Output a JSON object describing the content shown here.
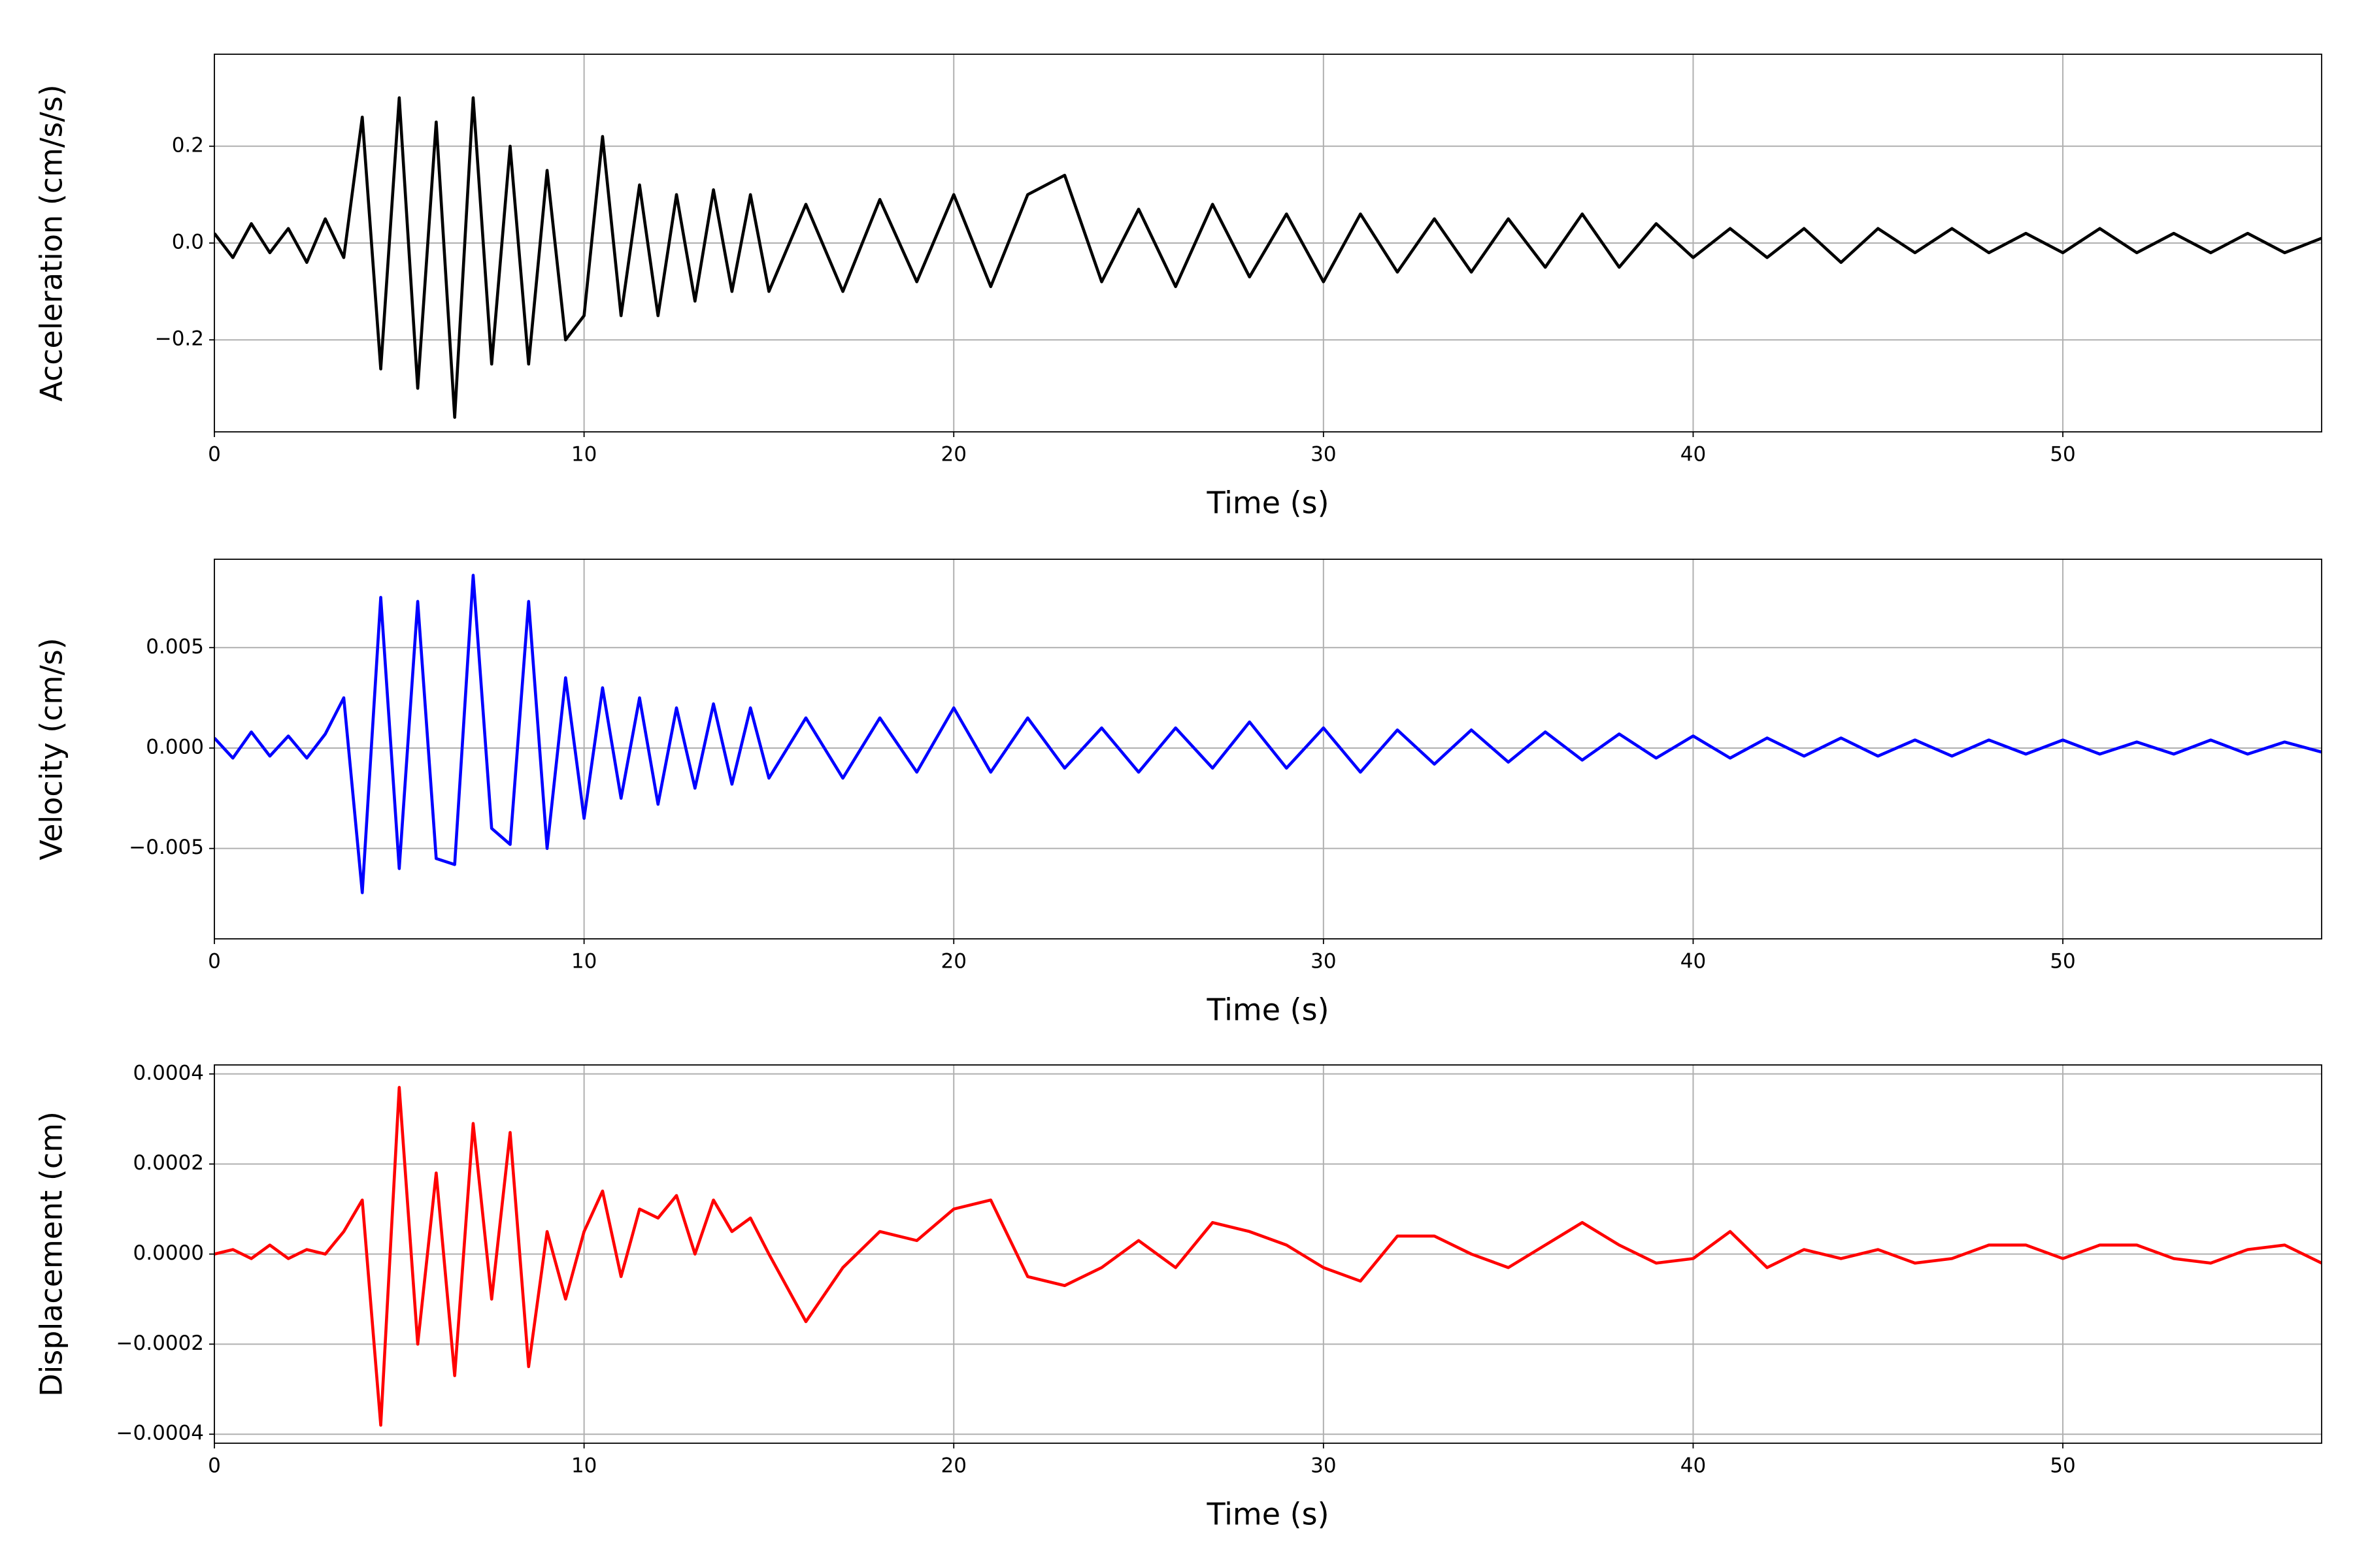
{
  "chart_data": [
    {
      "type": "line",
      "xlabel": "Time (s)",
      "ylabel": "Acceleration (cm/s/s)",
      "color": "#000000",
      "grid": true,
      "xlim": [
        0,
        57
      ],
      "xticks": [
        0,
        10,
        20,
        30,
        40,
        50
      ],
      "ylim": [
        -0.39,
        0.39
      ],
      "yticks": [
        {
          "value": -0.2,
          "label": "−0.2"
        },
        {
          "value": 0,
          "label": "0.0"
        },
        0.2
      ],
      "x": [
        0,
        0.5,
        1,
        1.5,
        2,
        2.5,
        3,
        3.5,
        4,
        4.5,
        5,
        5.5,
        6,
        6.5,
        7,
        7.5,
        8,
        8.5,
        9,
        9.5,
        10,
        10.5,
        11,
        11.5,
        12,
        12.5,
        13,
        13.5,
        14,
        14.5,
        15,
        16,
        17,
        18,
        19,
        20,
        21,
        22,
        23,
        24,
        25,
        26,
        27,
        28,
        29,
        30,
        31,
        32,
        33,
        34,
        35,
        36,
        37,
        38,
        39,
        40,
        41,
        42,
        43,
        44,
        45,
        46,
        47,
        48,
        49,
        50,
        51,
        52,
        53,
        54,
        55,
        56,
        57
      ],
      "values": [
        0.02,
        -0.03,
        0.04,
        -0.02,
        0.03,
        -0.04,
        0.05,
        -0.03,
        0.26,
        -0.26,
        0.3,
        -0.3,
        0.25,
        -0.36,
        0.3,
        -0.25,
        0.2,
        -0.25,
        0.15,
        -0.2,
        -0.15,
        0.22,
        -0.15,
        0.12,
        -0.15,
        0.1,
        -0.12,
        0.11,
        -0.1,
        0.1,
        -0.1,
        0.08,
        -0.1,
        0.09,
        -0.08,
        0.1,
        -0.09,
        0.1,
        0.14,
        -0.08,
        0.07,
        -0.09,
        0.08,
        -0.07,
        0.06,
        -0.08,
        0.06,
        -0.06,
        0.05,
        -0.06,
        0.05,
        -0.05,
        0.06,
        -0.05,
        0.04,
        -0.03,
        0.03,
        -0.03,
        0.03,
        -0.04,
        0.03,
        -0.02,
        0.03,
        -0.02,
        0.02,
        -0.02,
        0.03,
        -0.02,
        0.02,
        -0.02,
        0.02,
        -0.02,
        0.01
      ]
    },
    {
      "type": "line",
      "xlabel": "Time (s)",
      "ylabel": "Velocity (cm/s)",
      "color": "#0000ff",
      "grid": true,
      "xlim": [
        0,
        57
      ],
      "xticks": [
        0,
        10,
        20,
        30,
        40,
        50
      ],
      "ylim": [
        -0.0095,
        0.0094
      ],
      "yticks": [
        {
          "value": -0.005,
          "label": "−0.005"
        },
        {
          "value": 0,
          "label": "0.000"
        },
        0.005
      ],
      "x": [
        0,
        0.5,
        1,
        1.5,
        2,
        2.5,
        3,
        3.5,
        4,
        4.5,
        5,
        5.5,
        6,
        6.5,
        7,
        7.5,
        8,
        8.5,
        9,
        9.5,
        10,
        10.5,
        11,
        11.5,
        12,
        12.5,
        13,
        13.5,
        14,
        14.5,
        15,
        16,
        17,
        18,
        19,
        20,
        21,
        22,
        23,
        24,
        25,
        26,
        27,
        28,
        29,
        30,
        31,
        32,
        33,
        34,
        35,
        36,
        37,
        38,
        39,
        40,
        41,
        42,
        43,
        44,
        45,
        46,
        47,
        48,
        49,
        50,
        51,
        52,
        53,
        54,
        55,
        56,
        57
      ],
      "values": [
        0.0005,
        -0.0005,
        0.0008,
        -0.0004,
        0.0006,
        -0.0005,
        0.0007,
        0.0025,
        -0.0072,
        0.0075,
        -0.006,
        0.0073,
        -0.0055,
        -0.0058,
        0.0086,
        -0.004,
        -0.0048,
        0.0073,
        -0.005,
        0.0035,
        -0.0035,
        0.003,
        -0.0025,
        0.0025,
        -0.0028,
        0.002,
        -0.002,
        0.0022,
        -0.0018,
        0.002,
        -0.0015,
        0.0015,
        -0.0015,
        0.0015,
        -0.0012,
        0.002,
        -0.0012,
        0.0015,
        -0.001,
        0.001,
        -0.0012,
        0.001,
        -0.001,
        0.0013,
        -0.001,
        0.001,
        -0.0012,
        0.0009,
        -0.0008,
        0.0009,
        -0.0007,
        0.0008,
        -0.0006,
        0.0007,
        -0.0005,
        0.0006,
        -0.0005,
        0.0005,
        -0.0004,
        0.0005,
        -0.0004,
        0.0004,
        -0.0004,
        0.0004,
        -0.0003,
        0.0004,
        -0.0003,
        0.0003,
        -0.0003,
        0.0004,
        -0.0003,
        0.0003,
        -0.0002
      ]
    },
    {
      "type": "line",
      "xlabel": "Time (s)",
      "ylabel": "Displacement (cm)",
      "color": "#ff0000",
      "grid": true,
      "xlim": [
        0,
        57
      ],
      "xticks": [
        0,
        10,
        20,
        30,
        40,
        50
      ],
      "ylim": [
        -0.00042,
        0.00042
      ],
      "yticks": [
        {
          "value": -0.0004,
          "label": "−0.0004"
        },
        {
          "value": -0.0002,
          "label": "−0.0002"
        },
        {
          "value": 0,
          "label": "0.0000"
        },
        0.0002,
        0.0004
      ],
      "x": [
        0,
        0.5,
        1,
        1.5,
        2,
        2.5,
        3,
        3.5,
        4,
        4.5,
        5,
        5.5,
        6,
        6.5,
        7,
        7.5,
        8,
        8.5,
        9,
        9.5,
        10,
        10.5,
        11,
        11.5,
        12,
        12.5,
        13,
        13.5,
        14,
        14.5,
        15,
        16,
        17,
        18,
        19,
        20,
        21,
        22,
        23,
        24,
        25,
        26,
        27,
        28,
        29,
        30,
        31,
        32,
        33,
        34,
        35,
        36,
        37,
        38,
        39,
        40,
        41,
        42,
        43,
        44,
        45,
        46,
        47,
        48,
        49,
        50,
        51,
        52,
        53,
        54,
        55,
        56,
        57
      ],
      "values": [
        0,
        1e-05,
        -1e-05,
        2e-05,
        -1e-05,
        1e-05,
        0,
        5e-05,
        0.00012,
        -0.00038,
        0.00037,
        -0.0002,
        0.00018,
        -0.00027,
        0.00029,
        -0.0001,
        0.00027,
        -0.00025,
        5e-05,
        -0.0001,
        5e-05,
        0.00014,
        -5e-05,
        0.0001,
        8e-05,
        0.00013,
        0,
        0.00012,
        5e-05,
        8e-05,
        0,
        -0.00015,
        -3e-05,
        5e-05,
        3e-05,
        0.0001,
        0.00012,
        -5e-05,
        -7e-05,
        -3e-05,
        3e-05,
        -3e-05,
        7e-05,
        5e-05,
        2e-05,
        -3e-05,
        -6e-05,
        4e-05,
        4e-05,
        0,
        -3e-05,
        2e-05,
        7e-05,
        2e-05,
        -2e-05,
        -1e-05,
        5e-05,
        -3e-05,
        1e-05,
        -1e-05,
        1e-05,
        -2e-05,
        -1e-05,
        2e-05,
        2e-05,
        -1e-05,
        2e-05,
        2e-05,
        -1e-05,
        -2e-05,
        1e-05,
        2e-05,
        -2e-05
      ]
    }
  ]
}
